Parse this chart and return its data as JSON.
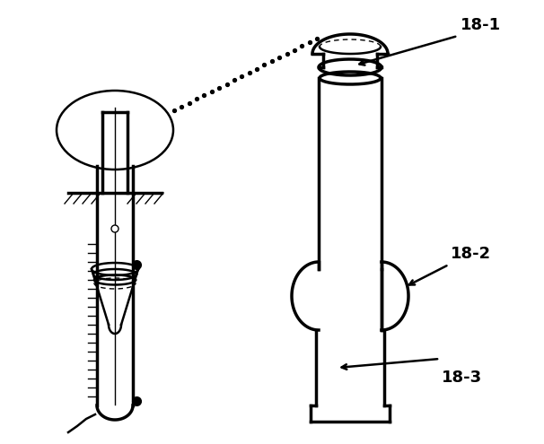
{
  "bg_color": "#ffffff",
  "line_color": "#000000",
  "lw_thick": 2.5,
  "lw_thin": 1.0,
  "lw_medium": 1.8,
  "label_18_1": "18-1",
  "label_18_2": "18-2",
  "label_18_3": "18-3",
  "font_size": 13
}
